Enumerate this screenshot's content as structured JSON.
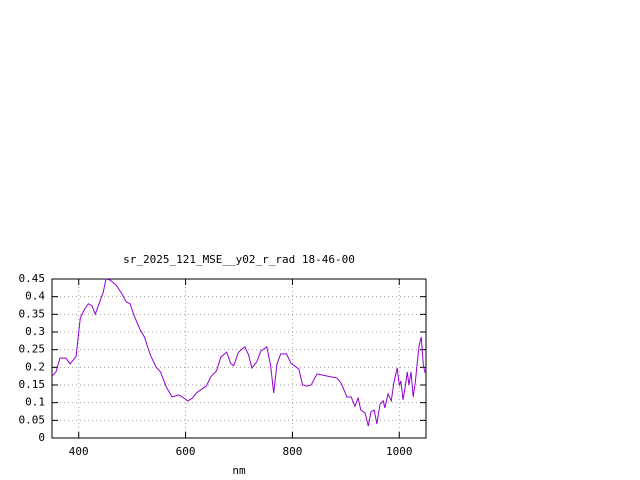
{
  "chart_data": {
    "type": "line",
    "title": "sr_2025_121_MSE__y02_r_rad 18-46-00",
    "x_label": "nm",
    "xlim": [
      350,
      1050
    ],
    "xticks": [
      400,
      600,
      800,
      1000
    ],
    "ylim": [
      0,
      0.45
    ],
    "yticks": [
      0,
      0.05,
      0.1,
      0.15,
      0.2,
      0.25,
      0.3,
      0.35,
      0.4,
      0.45
    ],
    "grid": true,
    "series": [
      {
        "color": "#9400d3",
        "x": [
          350,
          357.5,
          365,
          376,
          384,
          395,
          403,
          410,
          418,
          425,
          431,
          438,
          446,
          451,
          459,
          470,
          480,
          489,
          496,
          504,
          515,
          523,
          534,
          545,
          553,
          564,
          575,
          587,
          594,
          604,
          613,
          620,
          628,
          639,
          647,
          658,
          666,
          677,
          684,
          690,
          699,
          711,
          718,
          724,
          733,
          741,
          752,
          759,
          765,
          771,
          778,
          789,
          797,
          804,
          812,
          819,
          827,
          835,
          846,
          857,
          872,
          883,
          891,
          902,
          910,
          917,
          923,
          928,
          936,
          942,
          947,
          953,
          958,
          964,
          970,
          973,
          979,
          985,
          990,
          996,
          1000,
          1003,
          1007,
          1011,
          1015,
          1018,
          1022,
          1026,
          1030,
          1033,
          1037,
          1041,
          1045,
          1048,
          1050
        ],
        "values": [
          0.175,
          0.187,
          0.226,
          0.226,
          0.21,
          0.23,
          0.34,
          0.362,
          0.38,
          0.374,
          0.35,
          0.38,
          0.413,
          0.45,
          0.447,
          0.433,
          0.41,
          0.385,
          0.38,
          0.345,
          0.306,
          0.286,
          0.235,
          0.2,
          0.187,
          0.144,
          0.116,
          0.122,
          0.116,
          0.105,
          0.113,
          0.127,
          0.136,
          0.147,
          0.173,
          0.19,
          0.229,
          0.243,
          0.212,
          0.204,
          0.243,
          0.258,
          0.235,
          0.198,
          0.215,
          0.246,
          0.258,
          0.207,
          0.127,
          0.209,
          0.238,
          0.238,
          0.212,
          0.204,
          0.195,
          0.15,
          0.147,
          0.15,
          0.181,
          0.178,
          0.173,
          0.17,
          0.156,
          0.116,
          0.116,
          0.09,
          0.113,
          0.079,
          0.071,
          0.034,
          0.074,
          0.079,
          0.04,
          0.096,
          0.105,
          0.085,
          0.125,
          0.105,
          0.158,
          0.198,
          0.15,
          0.161,
          0.108,
          0.144,
          0.187,
          0.15,
          0.187,
          0.116,
          0.158,
          0.204,
          0.26,
          0.286,
          0.207,
          0.187,
          0.193
        ]
      }
    ]
  }
}
